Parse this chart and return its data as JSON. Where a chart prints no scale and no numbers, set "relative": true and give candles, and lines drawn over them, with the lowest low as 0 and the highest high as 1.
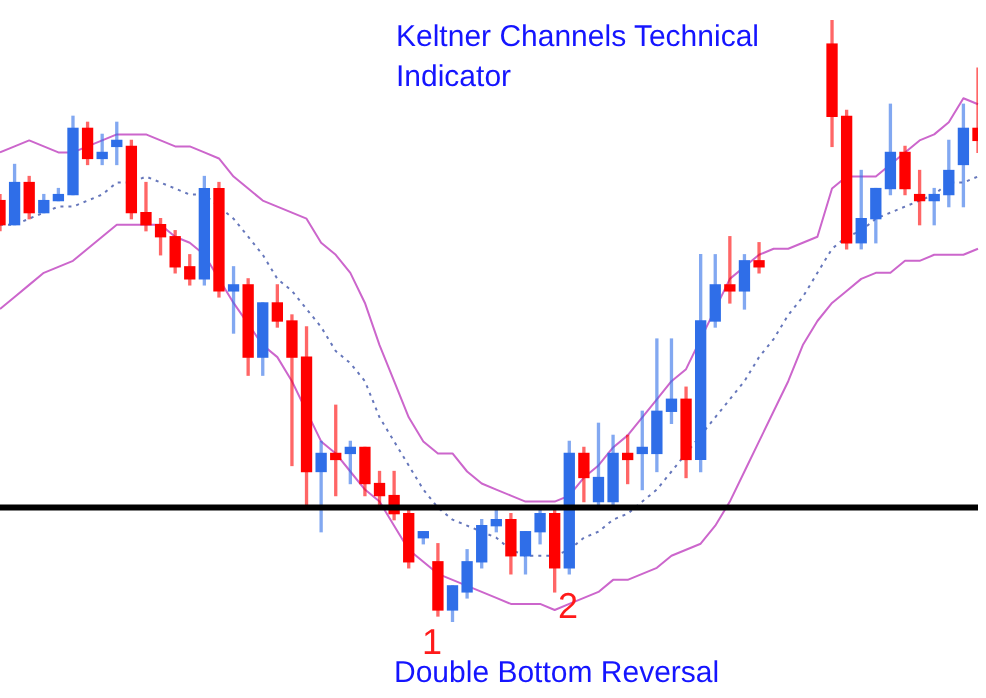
{
  "chart_data": {
    "type": "candlestick",
    "relative": true,
    "title": "Keltner Channels Technical Indicator",
    "categories": [
      null,
      null,
      null,
      null,
      null,
      null,
      null,
      null,
      null,
      null,
      null,
      null,
      null,
      null,
      null,
      null,
      null,
      null,
      null,
      null,
      null,
      null,
      null,
      null,
      null,
      null,
      null,
      null,
      null,
      null,
      null,
      null,
      null,
      null,
      null,
      null,
      null,
      null,
      null,
      null,
      null,
      null,
      null,
      null,
      null,
      null,
      null,
      null,
      null,
      null,
      null,
      null,
      null,
      null,
      null,
      null,
      null,
      null,
      null,
      null,
      null,
      null,
      null,
      null,
      null,
      null,
      null,
      null
    ],
    "ohlc": [
      [
        0.7,
        0.71,
        0.65,
        0.66
      ],
      [
        0.66,
        0.76,
        0.66,
        0.73
      ],
      [
        0.73,
        0.74,
        0.67,
        0.68
      ],
      [
        0.68,
        0.71,
        0.68,
        0.7
      ],
      [
        0.7,
        0.72,
        0.7,
        0.71
      ],
      [
        0.71,
        0.84,
        0.71,
        0.82
      ],
      [
        0.82,
        0.83,
        0.76,
        0.77
      ],
      [
        0.77,
        0.81,
        0.76,
        0.78
      ],
      [
        0.79,
        0.83,
        0.76,
        0.8
      ],
      [
        0.79,
        0.8,
        0.67,
        0.68
      ],
      [
        0.68,
        0.73,
        0.65,
        0.66
      ],
      [
        0.66,
        0.67,
        0.61,
        0.64
      ],
      [
        0.64,
        0.65,
        0.58,
        0.59
      ],
      [
        0.59,
        0.61,
        0.56,
        0.57
      ],
      [
        0.57,
        0.74,
        0.56,
        0.72
      ],
      [
        0.72,
        0.73,
        0.54,
        0.55
      ],
      [
        0.55,
        0.59,
        0.48,
        0.56
      ],
      [
        0.56,
        0.57,
        0.41,
        0.44
      ],
      [
        0.44,
        0.53,
        0.41,
        0.53
      ],
      [
        0.53,
        0.56,
        0.49,
        0.5
      ],
      [
        0.5,
        0.51,
        0.26,
        0.44
      ],
      [
        0.44,
        0.49,
        0.19,
        0.25
      ],
      [
        0.25,
        0.3,
        0.15,
        0.28
      ],
      [
        0.28,
        0.36,
        0.21,
        0.27
      ],
      [
        0.28,
        0.3,
        0.23,
        0.29
      ],
      [
        0.29,
        0.29,
        0.21,
        0.23
      ],
      [
        0.23,
        0.25,
        0.19,
        0.21
      ],
      [
        0.21,
        0.25,
        0.17,
        0.18
      ],
      [
        0.18,
        0.19,
        0.09,
        0.1
      ],
      [
        0.14,
        0.15,
        0.13,
        0.15
      ],
      [
        0.1,
        0.13,
        0.01,
        0.02
      ],
      [
        0.02,
        0.06,
        0,
        0.06
      ],
      [
        0.05,
        0.12,
        0.04,
        0.1
      ],
      [
        0.1,
        0.17,
        0.09,
        0.16
      ],
      [
        0.16,
        0.19,
        0.15,
        0.17
      ],
      [
        0.17,
        0.18,
        0.08,
        0.11
      ],
      [
        0.11,
        0.15,
        0.08,
        0.15
      ],
      [
        0.15,
        0.19,
        0.13,
        0.18
      ],
      [
        0.18,
        0.19,
        0.05,
        0.09
      ],
      [
        0.09,
        0.3,
        0.08,
        0.28
      ],
      [
        0.28,
        0.29,
        0.2,
        0.24
      ],
      [
        0.2,
        0.33,
        0.19,
        0.24
      ],
      [
        0.2,
        0.31,
        0.19,
        0.28
      ],
      [
        0.28,
        0.31,
        0.23,
        0.27
      ],
      [
        0.28,
        0.35,
        0.22,
        0.29
      ],
      [
        0.28,
        0.47,
        0.25,
        0.35
      ],
      [
        0.35,
        0.47,
        0.33,
        0.37
      ],
      [
        0.37,
        0.39,
        0.24,
        0.27
      ],
      [
        0.27,
        0.61,
        0.25,
        0.5
      ],
      [
        0.5,
        0.61,
        0.49,
        0.56
      ],
      [
        0.56,
        0.64,
        0.53,
        0.55
      ],
      [
        0.55,
        0.61,
        0.52,
        0.6
      ],
      [
        0.6,
        0.63,
        0.58,
        0.59
      ],
      null,
      null,
      null,
      null,
      [
        0.96,
        1,
        0.79,
        0.84
      ],
      [
        0.84,
        0.85,
        0.62,
        0.63
      ],
      [
        0.63,
        0.75,
        0.62,
        0.67
      ],
      [
        0.67,
        0.72,
        0.63,
        0.72
      ],
      [
        0.72,
        0.86,
        0.71,
        0.78
      ],
      [
        0.78,
        0.79,
        0.71,
        0.72
      ],
      [
        0.71,
        0.75,
        0.66,
        0.7
      ],
      [
        0.7,
        0.72,
        0.66,
        0.71
      ],
      [
        0.71,
        0.8,
        0.69,
        0.75
      ],
      [
        0.76,
        0.86,
        0.69,
        0.82
      ],
      [
        0.82,
        0.92,
        0.78,
        0.8
      ]
    ],
    "colors": [
      "#ff0000",
      "#2f6ee8",
      "#ff0000",
      "#2f6ee8",
      "#2f6ee8",
      "#2f6ee8",
      "#ff0000",
      "#2f6ee8",
      "#2f6ee8",
      "#ff0000",
      "#ff0000",
      "#ff0000",
      "#ff0000",
      "#ff0000",
      "#2f6ee8",
      "#ff0000",
      "#2f6ee8",
      "#ff0000",
      "#2f6ee8",
      "#ff0000",
      "#ff0000",
      "#ff0000",
      "#2f6ee8",
      "#ff0000",
      "#2f6ee8",
      "#ff0000",
      "#ff0000",
      "#ff0000",
      "#ff0000",
      "#2f6ee8",
      "#ff0000",
      "#2f6ee8",
      "#2f6ee8",
      "#2f6ee8",
      "#2f6ee8",
      "#ff0000",
      "#2f6ee8",
      "#2f6ee8",
      "#ff0000",
      "#2f6ee8",
      "#ff0000",
      "#2f6ee8",
      "#2f6ee8",
      "#ff0000",
      "#2f6ee8",
      "#2f6ee8",
      "#2f6ee8",
      "#ff0000",
      "#2f6ee8",
      "#2f6ee8",
      "#ff0000",
      "#2f6ee8",
      "#ff0000",
      null,
      null,
      null,
      null,
      "#ff0000",
      "#ff0000",
      "#2f6ee8",
      "#2f6ee8",
      "#2f6ee8",
      "#ff0000",
      "#ff0000",
      "#2f6ee8",
      "#2f6ee8",
      "#2f6ee8",
      "#ff0000"
    ],
    "series": [
      {
        "type": "line",
        "color": "#cc66cc",
        "line_style": "solid",
        "values": [
          0.78,
          0.79,
          0.8,
          0.79,
          0.78,
          0.78,
          0.79,
          0.8,
          0.81,
          0.81,
          0.81,
          0.8,
          0.79,
          0.79,
          0.78,
          0.77,
          0.74,
          0.72,
          0.7,
          0.69,
          0.68,
          0.67,
          0.63,
          0.61,
          0.58,
          0.53,
          0.46,
          0.4,
          0.34,
          0.3,
          0.28,
          0.28,
          0.25,
          0.23,
          0.22,
          0.21,
          0.2,
          0.2,
          0.2,
          0.21,
          0.24,
          0.26,
          0.29,
          0.31,
          0.34,
          0.37,
          0.4,
          0.42,
          null,
          null,
          0.57,
          0.59,
          0.61,
          0.62,
          0.62,
          0.63,
          0.64,
          0.72,
          0.74,
          0.74,
          0.74,
          0.76,
          0.78,
          0.8,
          0.81,
          0.83,
          0.87,
          0.86
        ]
      },
      {
        "type": "line",
        "color": "#6677bb",
        "line_style": "dotted",
        "values": [
          0.66,
          0.66,
          0.67,
          0.68,
          0.69,
          0.69,
          0.7,
          0.71,
          0.73,
          0.73,
          0.74,
          0.73,
          0.72,
          0.71,
          0.71,
          0.69,
          0.67,
          0.64,
          0.61,
          0.57,
          0.55,
          0.52,
          0.49,
          0.45,
          0.43,
          0.4,
          0.34,
          0.3,
          0.26,
          0.22,
          0.19,
          0.17,
          0.16,
          0.15,
          0.14,
          0.12,
          0.11,
          0.11,
          0.11,
          0.12,
          0.14,
          0.15,
          0.17,
          0.18,
          0.2,
          0.22,
          0.25,
          0.28,
          0.31,
          0.34,
          0.37,
          0.4,
          0.44,
          0.47,
          0.51,
          0.54,
          0.58,
          0.62,
          0.64,
          0.65,
          0.67,
          0.68,
          0.69,
          0.7,
          0.71,
          0.73,
          0.73,
          0.74
        ]
      },
      {
        "type": "line",
        "color": "#cc66cc",
        "line_style": "solid",
        "values": [
          0.52,
          0.54,
          0.56,
          0.58,
          0.59,
          0.6,
          0.62,
          0.64,
          0.66,
          0.66,
          0.66,
          0.66,
          0.64,
          0.63,
          0.61,
          null,
          0.53,
          null,
          0.46,
          0.44,
          0.4,
          null,
          0.3,
          0.28,
          0.25,
          0.22,
          0.2,
          0.16,
          0.12,
          0.1,
          0.08,
          0.07,
          0.06,
          0.05,
          0.04,
          0.03,
          0.03,
          0.03,
          0.02,
          0.03,
          0.04,
          0.05,
          0.07,
          0.07,
          0.08,
          0.09,
          0.11,
          0.12,
          0.13,
          0.16,
          0.2,
          0.25,
          0.3,
          0.35,
          0.4,
          0.46,
          0.5,
          0.53,
          0.55,
          0.57,
          0.58,
          0.58,
          0.6,
          0.6,
          0.61,
          0.61,
          0.61,
          0.62
        ]
      }
    ],
    "ref_lines": [
      {
        "axis": "y",
        "value": 0.19,
        "color": "#000000"
      }
    ],
    "annotations": [
      "1",
      "2",
      "Double Bottom Reversal"
    ]
  }
}
